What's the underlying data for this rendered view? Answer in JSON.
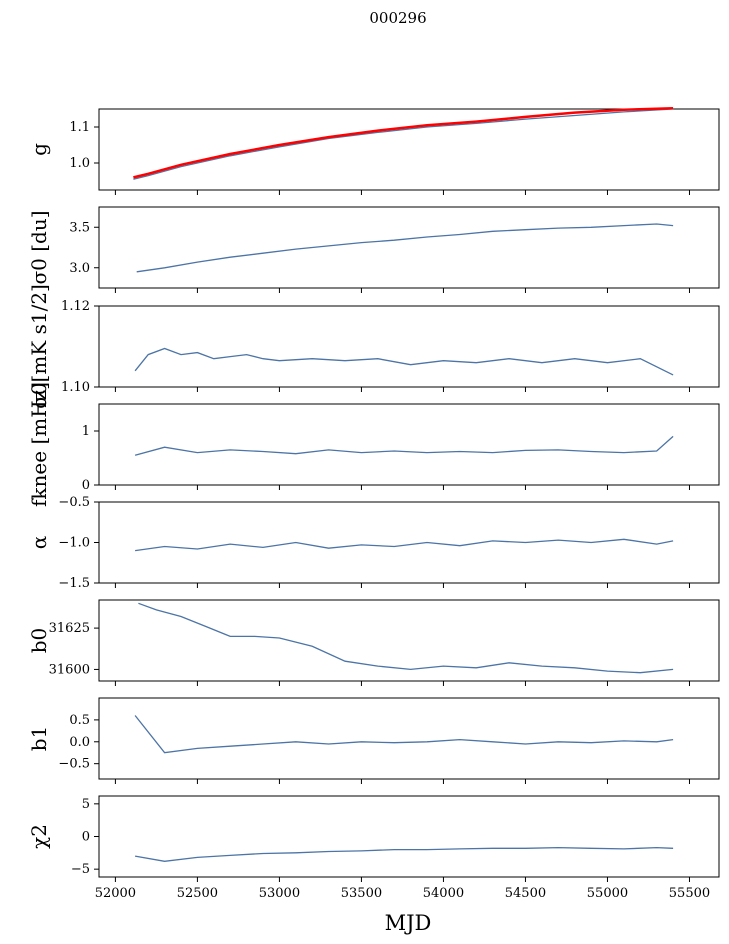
{
  "figure": {
    "title": "000296",
    "xlabel": "MJD",
    "xlim": [
      51900,
      55680
    ],
    "xticks": [
      52000,
      52500,
      53000,
      53500,
      54000,
      54500,
      55000,
      55500
    ],
    "line_color": "#4c74a6",
    "overlay_color": "#ff0000"
  },
  "chart_data": [
    {
      "type": "line",
      "ylabel": "g",
      "ylim": [
        0.925,
        1.15
      ],
      "yticks": [
        1.0,
        1.1
      ],
      "yticklabels": [
        "1.0",
        "1.1"
      ],
      "series": [
        {
          "values_x": [
            52110,
            52200,
            52400,
            52700,
            53000,
            53300,
            53600,
            53900,
            54200,
            54500,
            54800,
            55100,
            55400
          ],
          "values_y": [
            0.955,
            0.965,
            0.99,
            1.02,
            1.045,
            1.068,
            1.085,
            1.1,
            1.11,
            1.122,
            1.132,
            1.142,
            1.15
          ]
        },
        {
          "values_x": [
            52110,
            52200,
            52400,
            52700,
            53000,
            53300,
            53600,
            53900,
            54200,
            54500,
            54800,
            55100,
            55400
          ],
          "values_y": [
            0.96,
            0.97,
            0.995,
            1.025,
            1.05,
            1.072,
            1.09,
            1.105,
            1.115,
            1.128,
            1.14,
            1.148,
            1.152
          ],
          "color": "red"
        }
      ]
    },
    {
      "type": "line",
      "ylabel": "σ0 [du]",
      "ylim": [
        2.75,
        3.75
      ],
      "yticks": [
        3.0,
        3.5
      ],
      "yticklabels": [
        "3.0",
        "3.5"
      ],
      "series": [
        {
          "values_x": [
            52130,
            52300,
            52500,
            52700,
            52900,
            53100,
            53300,
            53500,
            53700,
            53900,
            54100,
            54300,
            54500,
            54700,
            54900,
            55100,
            55300,
            55400
          ],
          "values_y": [
            2.95,
            3.0,
            3.07,
            3.13,
            3.18,
            3.23,
            3.27,
            3.31,
            3.34,
            3.38,
            3.41,
            3.45,
            3.47,
            3.49,
            3.5,
            3.52,
            3.54,
            3.52
          ]
        }
      ]
    },
    {
      "type": "line",
      "ylabel": "σ0[mK s1/2]",
      "ylim": [
        1.1,
        1.12
      ],
      "yticks": [
        1.1,
        1.12
      ],
      "yticklabels": [
        "1.10",
        "1.12"
      ],
      "series": [
        {
          "values_x": [
            52120,
            52200,
            52300,
            52400,
            52500,
            52600,
            52700,
            52800,
            52900,
            53000,
            53200,
            53400,
            53600,
            53800,
            54000,
            54200,
            54400,
            54600,
            54800,
            55000,
            55200,
            55400
          ],
          "values_y": [
            1.104,
            1.108,
            1.1095,
            1.108,
            1.1085,
            1.107,
            1.1075,
            1.108,
            1.107,
            1.1065,
            1.107,
            1.1065,
            1.107,
            1.1055,
            1.1065,
            1.106,
            1.107,
            1.106,
            1.107,
            1.106,
            1.107,
            1.103
          ]
        }
      ]
    },
    {
      "type": "line",
      "ylabel": "fknee [mHz]",
      "ylim": [
        0,
        1.5
      ],
      "yticks": [
        0,
        1
      ],
      "yticklabels": [
        "0",
        "1"
      ],
      "series": [
        {
          "values_x": [
            52120,
            52300,
            52500,
            52700,
            52900,
            53100,
            53300,
            53500,
            53700,
            53900,
            54100,
            54300,
            54500,
            54700,
            54900,
            55100,
            55300,
            55400
          ],
          "values_y": [
            0.55,
            0.7,
            0.6,
            0.65,
            0.62,
            0.58,
            0.65,
            0.6,
            0.63,
            0.6,
            0.62,
            0.6,
            0.64,
            0.65,
            0.62,
            0.6,
            0.63,
            0.9
          ]
        }
      ]
    },
    {
      "type": "line",
      "ylabel": "α",
      "ylim": [
        -1.5,
        -0.5
      ],
      "yticks": [
        -1.5,
        -1.0,
        -0.5
      ],
      "yticklabels": [
        "−1.5",
        "−1.0",
        "−0.5"
      ],
      "series": [
        {
          "values_x": [
            52120,
            52300,
            52500,
            52700,
            52900,
            53100,
            53300,
            53500,
            53700,
            53900,
            54100,
            54300,
            54500,
            54700,
            54900,
            55100,
            55300,
            55400
          ],
          "values_y": [
            -1.1,
            -1.05,
            -1.08,
            -1.02,
            -1.06,
            -1.0,
            -1.07,
            -1.03,
            -1.05,
            -1.0,
            -1.04,
            -0.98,
            -1.0,
            -0.97,
            -1.0,
            -0.96,
            -1.02,
            -0.98
          ]
        }
      ]
    },
    {
      "type": "line",
      "ylabel": "b0",
      "ylim": [
        31593,
        31642
      ],
      "yticks": [
        31600,
        31625
      ],
      "yticklabels": [
        "31600",
        "31625"
      ],
      "series": [
        {
          "values_x": [
            52140,
            52250,
            52400,
            52550,
            52700,
            52850,
            53000,
            53200,
            53400,
            53600,
            53800,
            54000,
            54200,
            54400,
            54600,
            54800,
            55000,
            55200,
            55400
          ],
          "values_y": [
            31640,
            31636,
            31632,
            31626,
            31620,
            31620,
            31619,
            31614,
            31605,
            31602,
            31600,
            31602,
            31601,
            31604,
            31602,
            31601,
            31599,
            31598,
            31600
          ]
        }
      ]
    },
    {
      "type": "line",
      "ylabel": "b1",
      "ylim": [
        -0.85,
        1.0
      ],
      "yticks": [
        -0.5,
        0.0,
        0.5
      ],
      "yticklabels": [
        "−0.5",
        "0.0",
        "0.5"
      ],
      "series": [
        {
          "values_x": [
            52120,
            52300,
            52500,
            52700,
            52900,
            53100,
            53300,
            53500,
            53700,
            53900,
            54100,
            54300,
            54500,
            54700,
            54900,
            55100,
            55300,
            55400
          ],
          "values_y": [
            0.6,
            -0.25,
            -0.15,
            -0.1,
            -0.05,
            0.0,
            -0.05,
            0.0,
            -0.02,
            0.0,
            0.05,
            0.0,
            -0.05,
            0.0,
            -0.02,
            0.02,
            0.0,
            0.05
          ]
        }
      ]
    },
    {
      "type": "line",
      "ylabel": "χ2",
      "ylim": [
        -6.2,
        6.2
      ],
      "yticks": [
        -5,
        0,
        5
      ],
      "yticklabels": [
        "−5",
        "0",
        "5"
      ],
      "series": [
        {
          "values_x": [
            52120,
            52300,
            52500,
            52700,
            52900,
            53100,
            53300,
            53500,
            53700,
            53900,
            54100,
            54300,
            54500,
            54700,
            54900,
            55100,
            55300,
            55400
          ],
          "values_y": [
            -3,
            -3.8,
            -3.2,
            -2.9,
            -2.6,
            -2.5,
            -2.3,
            -2.2,
            -2.0,
            -2.0,
            -1.9,
            -1.8,
            -1.8,
            -1.7,
            -1.8,
            -1.9,
            -1.7,
            -1.8
          ]
        }
      ]
    }
  ]
}
